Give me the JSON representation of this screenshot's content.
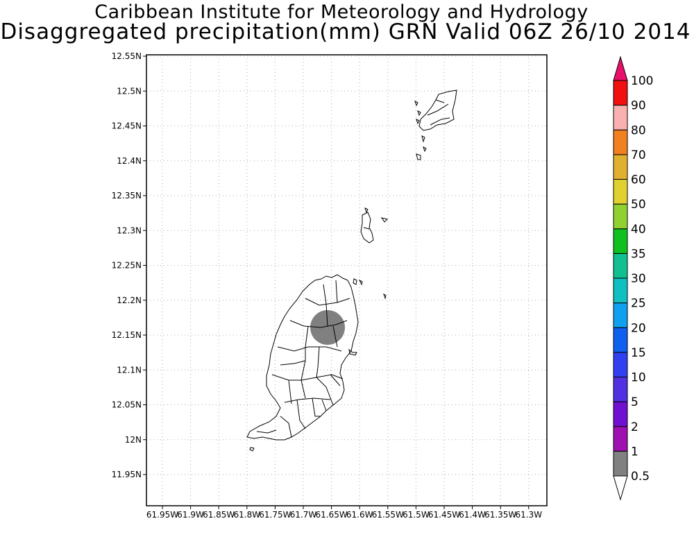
{
  "title": {
    "line1": "Caribbean Institute for Meteorology and Hydrology",
    "line2": "Disaggregated precipitation(mm) GRN Valid 06Z 26/10 2014"
  },
  "axes": {
    "y_ticks": [
      "12.55N",
      "12.5N",
      "12.45N",
      "12.4N",
      "12.35N",
      "12.3N",
      "12.25N",
      "12.2N",
      "12.15N",
      "12.1N",
      "12.05N",
      "12N",
      "11.95N"
    ],
    "x_ticks": [
      "61.95W",
      "61.9W",
      "61.85W",
      "61.8W",
      "61.75W",
      "61.7W",
      "61.65W",
      "61.6W",
      "61.55W",
      "61.5W",
      "61.45W",
      "61.4W",
      "61.35W",
      "61.3W"
    ]
  },
  "colorbar": {
    "levels": [
      "0.5",
      "1",
      "2",
      "5",
      "10",
      "15",
      "20",
      "25",
      "30",
      "35",
      "40",
      "50",
      "60",
      "70",
      "80",
      "90",
      "100"
    ],
    "colors": [
      "#808080",
      "#a010b0",
      "#7010d0",
      "#5030e0",
      "#3040f0",
      "#1060f0",
      "#10a0f0",
      "#10c0c0",
      "#10c090",
      "#10c020",
      "#90d030",
      "#e0d030",
      "#e0b030",
      "#f08020",
      "#f8b0b0",
      "#f01010",
      "#f04040",
      "#e8106a"
    ]
  },
  "precip_blob": {
    "color": "#808080",
    "value_class": "0.5-1"
  }
}
